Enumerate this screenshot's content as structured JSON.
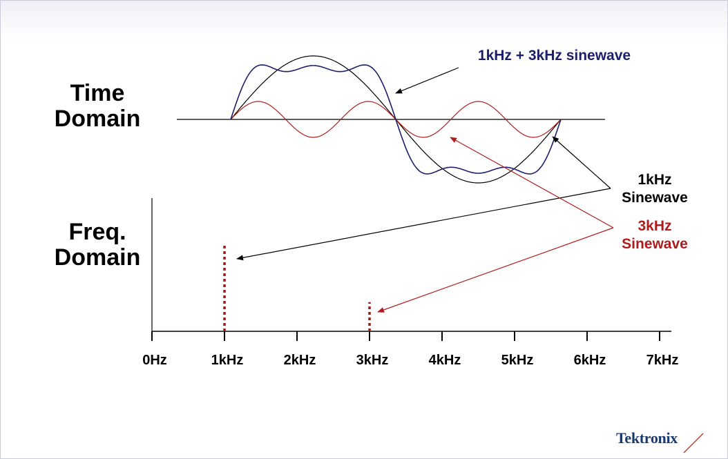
{
  "labels": {
    "time_domain": [
      "Time",
      "Domain"
    ],
    "freq_domain": [
      "Freq.",
      "Domain"
    ]
  },
  "annotations": {
    "combined": "1kHz + 3kHz sinewave",
    "one_khz": [
      "1kHz",
      "Sinewave"
    ],
    "three_khz": [
      "3kHz",
      "Sinewave"
    ]
  },
  "frequency_axis": {
    "ticks": [
      "0Hz",
      "1kHz",
      "2kHz",
      "3kHz",
      "4kHz",
      "5kHz",
      "6kHz",
      "7kHz"
    ]
  },
  "spectrum": [
    {
      "frequency": "1kHz",
      "relative_amplitude": 1.0
    },
    {
      "frequency": "3kHz",
      "relative_amplitude": 0.33
    }
  ],
  "logo": "Tektronix",
  "colors": {
    "combined": "#1b1f6b",
    "one_khz": "#000000",
    "three_khz": "#b01c1c",
    "logo": "#1a3a6e"
  }
}
